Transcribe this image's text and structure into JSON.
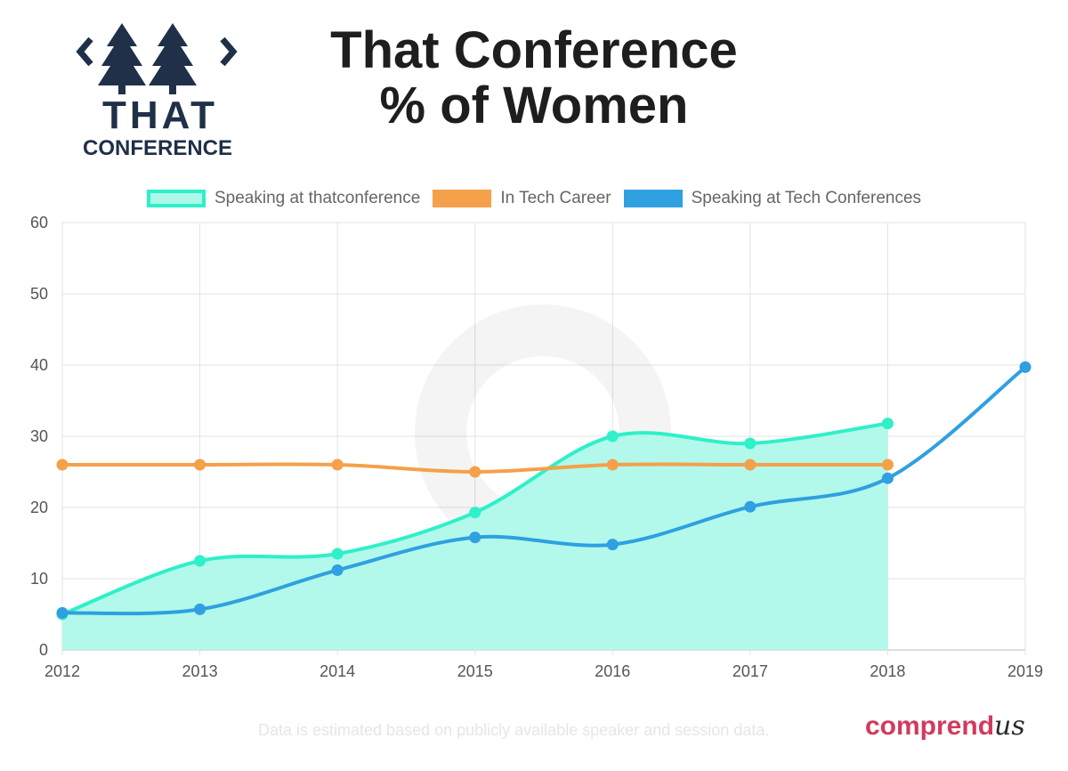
{
  "logo": {
    "line1": "THAT",
    "line2": "CONFERENCE",
    "brackets": "< >",
    "icon": "pine-trees-icon"
  },
  "title_lines": [
    "That Conference",
    "% of Women"
  ],
  "chart_data": {
    "type": "line",
    "x": [
      "2012",
      "2013",
      "2014",
      "2015",
      "2016",
      "2017",
      "2018",
      "2019"
    ],
    "ylim": [
      0,
      60
    ],
    "yticks": [
      0,
      10,
      20,
      30,
      40,
      50,
      60
    ],
    "grid": true,
    "legend_position": "top",
    "series": [
      {
        "name": "Speaking at thatconference",
        "values": [
          5,
          12.5,
          13.5,
          19.3,
          30,
          29,
          31.8,
          null
        ],
        "color": "#2ef0c9",
        "fill": true
      },
      {
        "name": "In Tech Career",
        "values": [
          26,
          26,
          26,
          25,
          26,
          26,
          26,
          null
        ],
        "color": "#f5a04a",
        "fill": false
      },
      {
        "name": "Speaking at Tech Conferences",
        "values": [
          5.2,
          5.7,
          11.2,
          15.8,
          14.8,
          20.1,
          24.1,
          39.7
        ],
        "color": "#2fa0e0",
        "fill": false
      }
    ]
  },
  "footnote": "Data is estimated based on publicly available speaker and session data.",
  "brand": {
    "part1": "comprend",
    "part2": "us"
  }
}
